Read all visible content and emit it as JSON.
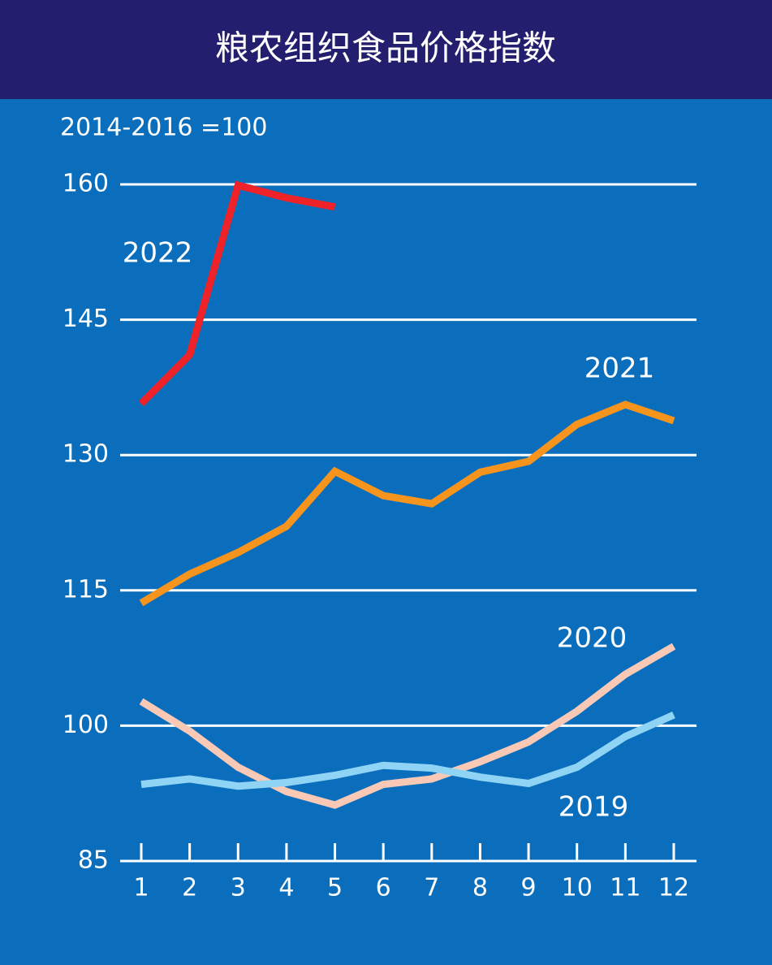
{
  "chart_data": {
    "type": "line",
    "title": "粮农组织食品价格指数",
    "y_label": "2014-2016 =100",
    "categories": [
      "1",
      "2",
      "3",
      "4",
      "5",
      "6",
      "7",
      "8",
      "9",
      "10",
      "11",
      "12"
    ],
    "ylim": [
      85,
      160
    ],
    "yticks": [
      85,
      100,
      115,
      130,
      145,
      160
    ],
    "grid": true,
    "series": [
      {
        "name": "2022",
        "color": "#ee2229",
        "values": [
          135.7,
          141.1,
          159.9,
          158.5,
          157.5,
          null,
          null,
          null,
          null,
          null,
          null,
          null
        ]
      },
      {
        "name": "2021",
        "color": "#f7941d",
        "values": [
          113.6,
          116.8,
          119.2,
          122.1,
          128.2,
          125.5,
          124.6,
          128.1,
          129.3,
          133.4,
          135.6,
          133.8
        ]
      },
      {
        "name": "2020",
        "color": "#f9c9b6",
        "values": [
          102.7,
          99.4,
          95.4,
          92.7,
          91.2,
          93.5,
          94.1,
          96.0,
          98.2,
          101.6,
          105.7,
          108.8
        ]
      },
      {
        "name": "2019",
        "color": "#8fd3f5",
        "values": [
          93.5,
          94.1,
          93.3,
          93.7,
          94.5,
          95.6,
          95.3,
          94.3,
          93.6,
          95.4,
          98.8,
          101.2
        ]
      }
    ]
  }
}
